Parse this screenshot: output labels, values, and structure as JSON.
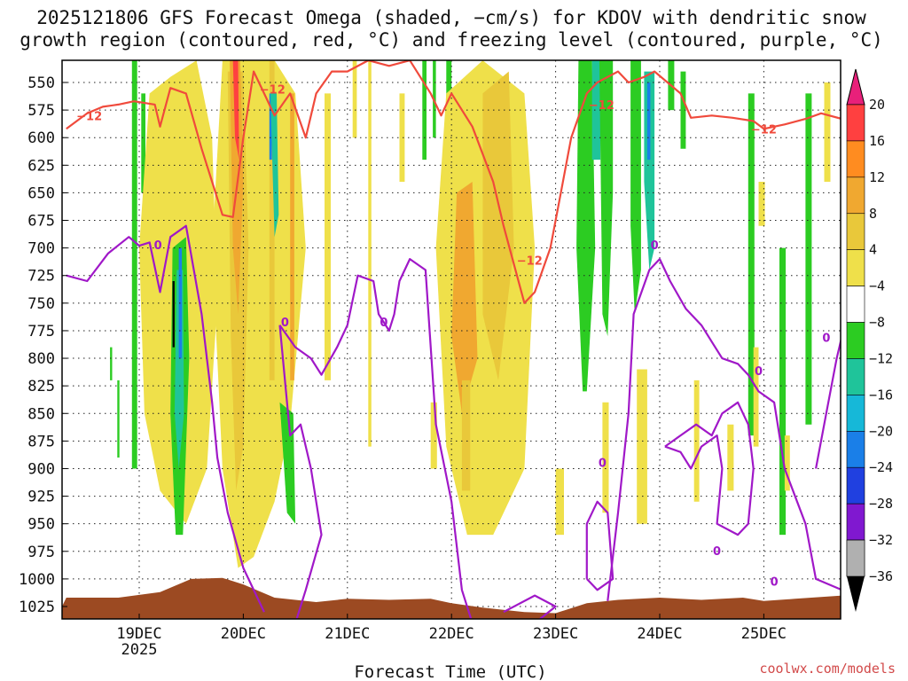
{
  "chart_data": {
    "type": "heatmap",
    "title_lines": [
      "2025121806 GFS Forecast Omega (shaded, −cm/s) for KDOV with dendritic snow",
      "growth region (contoured, red, °C) and freezing level (contoured, purple, °C)"
    ],
    "xlabel": "Forecast Time (UTC)",
    "ylabel": "",
    "credit": "coolwx.com/models",
    "x_range": [
      18.3,
      25.75
    ],
    "x_ticks": [
      {
        "value": 19,
        "label": "19DEC",
        "sub": "2025"
      },
      {
        "value": 20,
        "label": "20DEC",
        "sub": ""
      },
      {
        "value": 21,
        "label": "21DEC",
        "sub": ""
      },
      {
        "value": 22,
        "label": "22DEC",
        "sub": ""
      },
      {
        "value": 23,
        "label": "23DEC",
        "sub": ""
      },
      {
        "value": 24,
        "label": "24DEC",
        "sub": ""
      },
      {
        "value": 25,
        "label": "25DEC",
        "sub": ""
      }
    ],
    "y_range_hpa": [
      530,
      1040
    ],
    "y_ticks": [
      "550",
      "575",
      "600",
      "625",
      "650",
      "675",
      "700",
      "725",
      "750",
      "775",
      "800",
      "825",
      "850",
      "875",
      "900",
      "925",
      "950",
      "975",
      "1000",
      "1025"
    ],
    "grid": "dotted",
    "colorbar": {
      "labels": [
        "20",
        "16",
        "12",
        "8",
        "4",
        "−4",
        "−8",
        "−12",
        "−16",
        "−20",
        "−24",
        "−28",
        "−32",
        "−36"
      ],
      "colors": [
        "#ff4040",
        "#ff8c20",
        "#f0a830",
        "#e9c83a",
        "#efe04a",
        "#ffffff",
        "#2ccc22",
        "#1fc49a",
        "#16b8d8",
        "#1a7fe8",
        "#2040e0",
        "#8018d0",
        "#a024c8",
        "#b0b0b0"
      ],
      "top_arrow_color": "#e8207a",
      "bottom_arrow_color": "#000000"
    },
    "surface_color": "#9c4a22",
    "dgz_contour": {
      "color": "#f04a3c",
      "value_label": "−12"
    },
    "freezing_contour": {
      "color": "#a018c8",
      "value_label": "0"
    }
  }
}
